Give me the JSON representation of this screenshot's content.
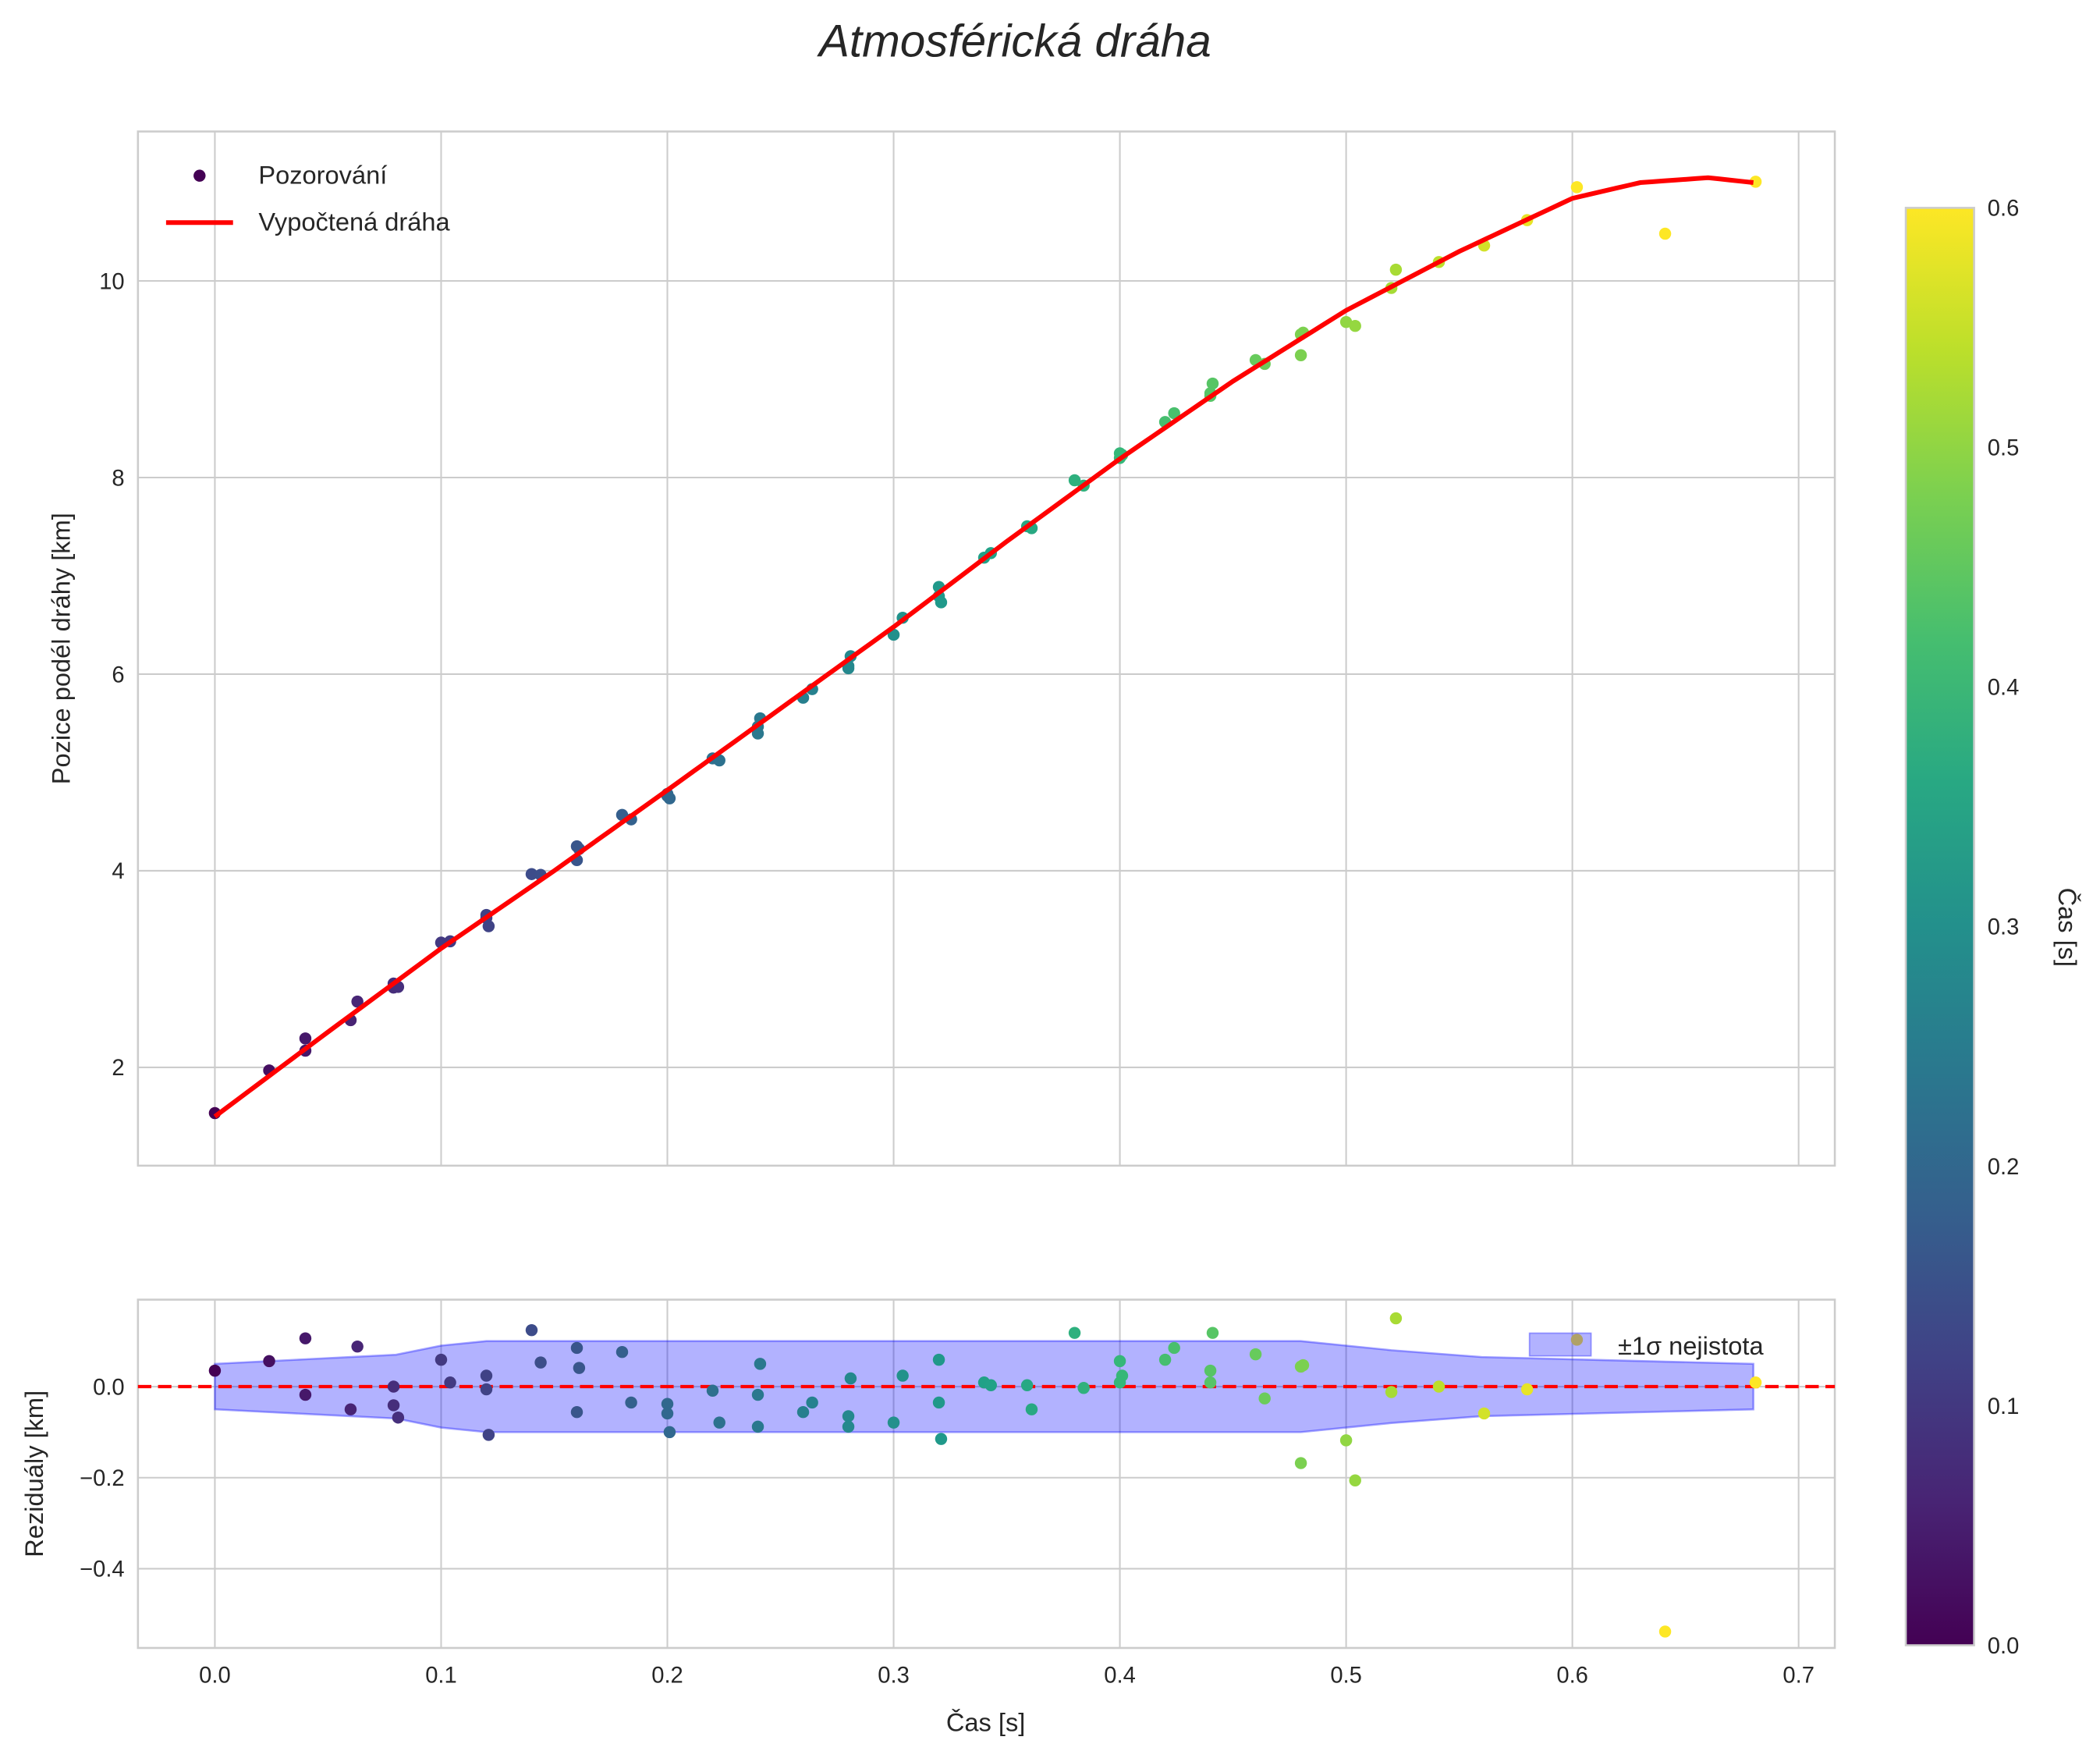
{
  "chart_data": [
    {
      "type": "scatter",
      "title": "Atmosférická dráha",
      "xlabel": "",
      "ylabel": "Pozice podél dráhy [km]",
      "xlim": [
        -0.034,
        0.716
      ],
      "ylim": [
        1.0,
        11.52
      ],
      "xticks": [
        "0.0",
        "0.1",
        "0.2",
        "0.3",
        "0.4",
        "0.5",
        "0.6",
        "0.7"
      ],
      "yticks": [
        "2",
        "4",
        "6",
        "8",
        "10"
      ],
      "grid": true,
      "legend": {
        "placement": "top-left",
        "entries": [
          "Pozorování",
          "Vypočtená dráha"
        ]
      },
      "fitted_curve": {
        "name": "Vypočtená dráha",
        "color": "#ff0000",
        "t": [
          0,
          0.05,
          0.1,
          0.15,
          0.2,
          0.25,
          0.3,
          0.35,
          0.4,
          0.45,
          0.5,
          0.55,
          0.6,
          0.63,
          0.66,
          0.68
        ],
        "y": [
          1.5,
          2.36,
          3.21,
          4.0,
          4.82,
          5.65,
          6.48,
          7.35,
          8.19,
          8.98,
          9.7,
          10.3,
          10.84,
          11.0,
          11.05,
          11.0
        ]
      },
      "observations_note_position": "position = fitted curve + residual"
    },
    {
      "type": "scatter",
      "xlabel": "Čas [s]",
      "ylabel": "Reziduály [km]",
      "xlim": [
        -0.034,
        0.716
      ],
      "ylim": [
        -0.574,
        0.191
      ],
      "xticks": [
        "0.0",
        "0.1",
        "0.2",
        "0.3",
        "0.4",
        "0.5",
        "0.6",
        "0.7"
      ],
      "yticks": [
        "−0.4",
        "−0.2",
        "0.0"
      ],
      "yticks_values": [
        -0.4,
        -0.2,
        0.0
      ],
      "zero_line_color": "#ff0000",
      "legend": {
        "placement": "top-right",
        "entries": [
          "±1σ nejistota"
        ]
      },
      "band": {
        "name": "±1σ nejistota",
        "color": "#0000ff",
        "t": [
          0,
          0.04,
          0.08,
          0.1,
          0.12,
          0.48,
          0.5,
          0.52,
          0.56,
          0.68
        ],
        "sigma": [
          0.05,
          0.06,
          0.07,
          0.09,
          0.1,
          0.1,
          0.09,
          0.08,
          0.065,
          0.05
        ]
      },
      "observations": [
        [
          0,
          0.035
        ],
        [
          0.024,
          0.056
        ],
        [
          0.04,
          0.106
        ],
        [
          0.04,
          -0.018
        ],
        [
          0.06,
          -0.05
        ],
        [
          0.063,
          0.088
        ],
        [
          0.079,
          0
        ],
        [
          0.079,
          -0.041
        ],
        [
          0.081,
          -0.068
        ],
        [
          0.1,
          0.059
        ],
        [
          0.104,
          0.009
        ],
        [
          0.12,
          0.024
        ],
        [
          0.12,
          -0.006
        ],
        [
          0.121,
          -0.106
        ],
        [
          0.14,
          0.124
        ],
        [
          0.144,
          0.053
        ],
        [
          0.16,
          0.085
        ],
        [
          0.161,
          0.041
        ],
        [
          0.16,
          -0.056
        ],
        [
          0.18,
          0.076
        ],
        [
          0.184,
          -0.035
        ],
        [
          0.2,
          -0.038
        ],
        [
          0.2,
          -0.059
        ],
        [
          0.201,
          -0.1
        ],
        [
          0.22,
          -0.009
        ],
        [
          0.223,
          -0.079
        ],
        [
          0.24,
          -0.018
        ],
        [
          0.241,
          0.05
        ],
        [
          0.24,
          -0.088
        ],
        [
          0.26,
          -0.056
        ],
        [
          0.264,
          -0.035
        ],
        [
          0.281,
          0.018
        ],
        [
          0.28,
          -0.065
        ],
        [
          0.28,
          -0.088
        ],
        [
          0.3,
          -0.079
        ],
        [
          0.304,
          0.024
        ],
        [
          0.32,
          0.059
        ],
        [
          0.32,
          -0.035
        ],
        [
          0.321,
          -0.115
        ],
        [
          0.34,
          0.009
        ],
        [
          0.343,
          0.003
        ],
        [
          0.359,
          0.003
        ],
        [
          0.361,
          -0.05
        ],
        [
          0.38,
          0.118
        ],
        [
          0.384,
          -0.003
        ],
        [
          0.4,
          0.056
        ],
        [
          0.401,
          0.024
        ],
        [
          0.4,
          0.009
        ],
        [
          0.42,
          0.059
        ],
        [
          0.424,
          0.085
        ],
        [
          0.441,
          0.118
        ],
        [
          0.44,
          0.035
        ],
        [
          0.44,
          0.009
        ],
        [
          0.46,
          0.071
        ],
        [
          0.464,
          -0.026
        ],
        [
          0.481,
          0.047
        ],
        [
          0.48,
          0.044
        ],
        [
          0.48,
          -0.168
        ],
        [
          0.5,
          -0.118
        ],
        [
          0.504,
          -0.206
        ],
        [
          0.52,
          -0.012
        ],
        [
          0.522,
          0.15
        ],
        [
          0.541,
          0
        ],
        [
          0.561,
          -0.059
        ],
        [
          0.58,
          -0.006
        ],
        [
          0.602,
          0.103
        ],
        [
          0.641,
          -0.538
        ],
        [
          0.681,
          0.009
        ]
      ]
    }
  ],
  "colorbar": {
    "label": "Čas [s]",
    "range": [
      0,
      0.6
    ],
    "ticks": [
      "0.0",
      "0.1",
      "0.2",
      "0.3",
      "0.4",
      "0.5",
      "0.6"
    ],
    "colormap": "viridis"
  }
}
